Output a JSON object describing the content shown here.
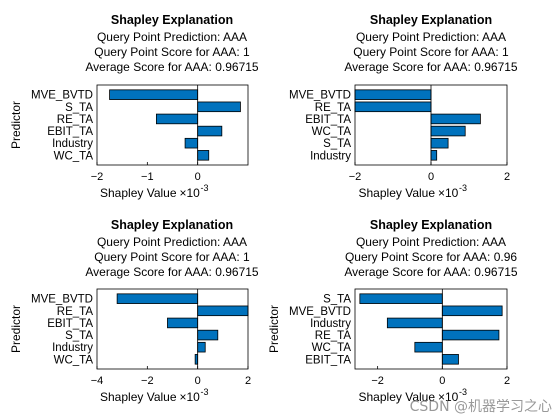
{
  "chart_data": [
    {
      "type": "bar",
      "orientation": "horizontal",
      "title": "Shapley Explanation",
      "subtitle": [
        "Query Point Prediction: AAA",
        "Query Point Score for AAA: 1",
        "Average Score for AAA: 0.96715"
      ],
      "categories": [
        "MVE_BVTD",
        "S_TA",
        "RE_TA",
        "EBIT_TA",
        "Industry",
        "WC_TA"
      ],
      "values": [
        -1.75,
        0.85,
        -0.82,
        0.48,
        -0.25,
        0.22
      ],
      "xlabel": "Shapley Value",
      "x_exponent": "-3",
      "ylabel": "Predictor",
      "xlim": [
        -2,
        1
      ],
      "xticks": [
        -2,
        -1,
        0
      ],
      "color": "#0072BD"
    },
    {
      "type": "bar",
      "orientation": "horizontal",
      "title": "Shapley Explanation",
      "subtitle": [
        "Query Point Prediction: AAA",
        "Query Point Score for AAA: 1",
        "Average Score for AAA: 0.96715"
      ],
      "categories": [
        "MVE_BVTD",
        "RE_TA",
        "EBIT_TA",
        "WC_TA",
        "S_TA",
        "Industry"
      ],
      "values": [
        -2.0,
        -2.0,
        1.3,
        0.9,
        0.45,
        0.15
      ],
      "xlabel": "Shapley Value",
      "x_exponent": "-3",
      "ylabel": "",
      "xlim": [
        -2,
        2
      ],
      "xticks": [
        -2,
        0,
        2
      ],
      "color": "#0072BD"
    },
    {
      "type": "bar",
      "orientation": "horizontal",
      "title": "Shapley Explanation",
      "subtitle": [
        "Query Point Prediction: AAA",
        "Query Point Score for AAA: 1",
        "Average Score for AAA: 0.96715"
      ],
      "categories": [
        "MVE_BVTD",
        "RE_TA",
        "EBIT_TA",
        "S_TA",
        "Industry",
        "WC_TA"
      ],
      "values": [
        -3.2,
        2.0,
        -1.2,
        0.8,
        0.3,
        -0.1
      ],
      "xlabel": "Shapley Value",
      "x_exponent": "-3",
      "ylabel": "Predictor",
      "xlim": [
        -4,
        2
      ],
      "xticks": [
        -4,
        -2,
        0,
        2
      ],
      "color": "#0072BD"
    },
    {
      "type": "bar",
      "orientation": "horizontal",
      "title": "Shapley Explanation",
      "subtitle": [
        "Query Point Prediction: AAA",
        "Query Point Score for AAA: 0.96",
        "Average Score for AAA: 0.96715"
      ],
      "categories": [
        "S_TA",
        "MVE_BVTD",
        "Industry",
        "RE_TA",
        "WC_TA",
        "EBIT_TA"
      ],
      "values": [
        -2.55,
        1.85,
        -1.7,
        1.75,
        -0.85,
        0.5
      ],
      "xlabel": "Shapley Value",
      "x_exponent": "-3",
      "ylabel": "Predictor",
      "xlim": [
        -2.7,
        2
      ],
      "xticks": [
        -2,
        0,
        2
      ],
      "color": "#0072BD"
    }
  ],
  "watermark": "CSDN @机器学习之心"
}
